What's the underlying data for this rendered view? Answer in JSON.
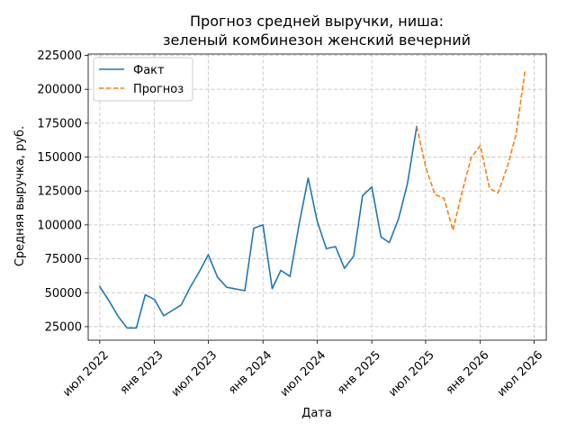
{
  "chart_data": {
    "type": "line",
    "title_lines": [
      "Прогноз средней выручки, ниша:",
      "зеленый комбинезон женский вечерний"
    ],
    "xlabel": "Дата",
    "ylabel": "Средняя выручка, руб.",
    "ylim": [
      15000,
      226000
    ],
    "xlim": [
      "2022-05-23",
      "2026-08-11"
    ],
    "y_ticks": [
      25000,
      50000,
      75000,
      100000,
      125000,
      150000,
      175000,
      200000,
      225000
    ],
    "x_ticks": [
      {
        "date": "2022-07-01",
        "label": "июл 2022"
      },
      {
        "date": "2023-01-01",
        "label": "янв 2023"
      },
      {
        "date": "2023-07-01",
        "label": "июл 2023"
      },
      {
        "date": "2024-01-01",
        "label": "янв 2024"
      },
      {
        "date": "2024-07-01",
        "label": "июл 2024"
      },
      {
        "date": "2025-01-01",
        "label": "янв 2025"
      },
      {
        "date": "2025-07-01",
        "label": "июл 2025"
      },
      {
        "date": "2026-01-01",
        "label": "янв 2026"
      },
      {
        "date": "2026-07-01",
        "label": "июл 2026"
      }
    ],
    "grid": true,
    "legend_position": "top-left",
    "series": [
      {
        "name": "Факт",
        "color": "#1f77b4",
        "style": "solid",
        "points": [
          [
            "2022-07-01",
            54500
          ],
          [
            "2022-08-01",
            44000
          ],
          [
            "2022-09-01",
            32500
          ],
          [
            "2022-10-01",
            24000
          ],
          [
            "2022-11-01",
            24000
          ],
          [
            "2022-12-01",
            48500
          ],
          [
            "2023-01-01",
            45000
          ],
          [
            "2023-02-01",
            33000
          ],
          [
            "2023-04-01",
            41000
          ],
          [
            "2023-05-01",
            54000
          ],
          [
            "2023-06-01",
            65500
          ],
          [
            "2023-07-01",
            78000
          ],
          [
            "2023-08-01",
            61500
          ],
          [
            "2023-09-01",
            54000
          ],
          [
            "2023-11-01",
            51500
          ],
          [
            "2023-12-01",
            97500
          ],
          [
            "2024-01-01",
            100000
          ],
          [
            "2024-02-01",
            53000
          ],
          [
            "2024-03-01",
            66500
          ],
          [
            "2024-04-01",
            62000
          ],
          [
            "2024-05-01",
            100000
          ],
          [
            "2024-06-01",
            134500
          ],
          [
            "2024-07-01",
            103000
          ],
          [
            "2024-08-01",
            82500
          ],
          [
            "2024-09-01",
            84000
          ],
          [
            "2024-10-01",
            68000
          ],
          [
            "2024-11-01",
            77000
          ],
          [
            "2024-12-01",
            121500
          ],
          [
            "2025-01-01",
            128000
          ],
          [
            "2025-02-01",
            91000
          ],
          [
            "2025-03-01",
            87000
          ],
          [
            "2025-04-01",
            104500
          ],
          [
            "2025-05-01",
            130500
          ],
          [
            "2025-06-01",
            172500
          ]
        ]
      },
      {
        "name": "Прогноз",
        "color": "#ff7f0e",
        "style": "dashed",
        "points": [
          [
            "2025-06-01",
            172500
          ],
          [
            "2025-07-01",
            143000
          ],
          [
            "2025-08-01",
            122500
          ],
          [
            "2025-09-01",
            119500
          ],
          [
            "2025-10-01",
            96000
          ],
          [
            "2025-11-01",
            124500
          ],
          [
            "2025-12-01",
            149500
          ],
          [
            "2026-01-01",
            158500
          ],
          [
            "2026-02-01",
            127000
          ],
          [
            "2026-03-01",
            123500
          ],
          [
            "2026-04-01",
            142000
          ],
          [
            "2026-05-01",
            166500
          ],
          [
            "2026-06-01",
            214500
          ]
        ]
      }
    ]
  }
}
